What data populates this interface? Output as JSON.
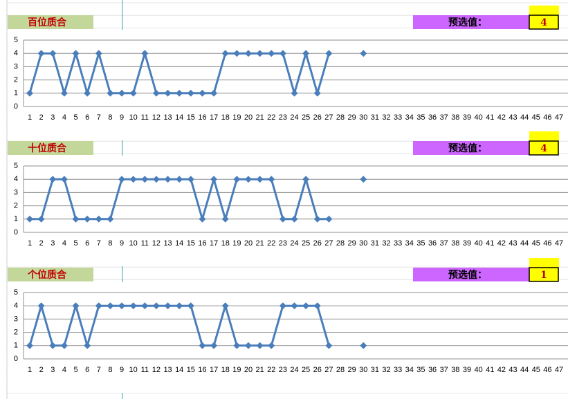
{
  "chart_data": [
    {
      "type": "line",
      "title": "百位质合",
      "preselect_label": "预选值：",
      "preselect_value": 4,
      "categories": [
        1,
        2,
        3,
        4,
        5,
        6,
        7,
        8,
        9,
        10,
        11,
        12,
        13,
        14,
        15,
        16,
        17,
        18,
        19,
        20,
        21,
        22,
        23,
        24,
        25,
        26,
        27,
        28,
        29,
        30,
        31,
        32,
        33,
        34,
        35,
        36,
        37,
        38,
        39,
        40,
        41,
        42,
        43,
        44,
        45,
        46,
        47
      ],
      "values": [
        1,
        4,
        4,
        1,
        4,
        1,
        4,
        1,
        1,
        1,
        4,
        1,
        1,
        1,
        1,
        1,
        1,
        4,
        4,
        4,
        4,
        4,
        4,
        1,
        4,
        1,
        4,
        null,
        null,
        4,
        null,
        null,
        null,
        null,
        null,
        null,
        null,
        null,
        null,
        null,
        null,
        null,
        null,
        null,
        null,
        null,
        null
      ],
      "color": "#4a7ebb",
      "ylim": [
        0,
        5
      ],
      "yticks": [
        0,
        1,
        2,
        3,
        4,
        5
      ],
      "grid": true
    },
    {
      "type": "line",
      "title": "十位质合",
      "preselect_label": "预选值：",
      "preselect_value": 4,
      "categories": [
        1,
        2,
        3,
        4,
        5,
        6,
        7,
        8,
        9,
        10,
        11,
        12,
        13,
        14,
        15,
        16,
        17,
        18,
        19,
        20,
        21,
        22,
        23,
        24,
        25,
        26,
        27,
        28,
        29,
        30,
        31,
        32,
        33,
        34,
        35,
        36,
        37,
        38,
        39,
        40,
        41,
        42,
        43,
        44,
        45,
        46,
        47
      ],
      "values": [
        1,
        1,
        4,
        4,
        1,
        1,
        1,
        1,
        4,
        4,
        4,
        4,
        4,
        4,
        4,
        1,
        4,
        1,
        4,
        4,
        4,
        4,
        1,
        1,
        4,
        1,
        1,
        null,
        null,
        4,
        null,
        null,
        null,
        null,
        null,
        null,
        null,
        null,
        null,
        null,
        null,
        null,
        null,
        null,
        null,
        null,
        null
      ],
      "color": "#4a7ebb",
      "ylim": [
        0,
        5
      ],
      "yticks": [
        0,
        1,
        2,
        3,
        4,
        5
      ],
      "grid": true
    },
    {
      "type": "line",
      "title": "个位质合",
      "preselect_label": "预选值：",
      "preselect_value": 1,
      "categories": [
        1,
        2,
        3,
        4,
        5,
        6,
        7,
        8,
        9,
        10,
        11,
        12,
        13,
        14,
        15,
        16,
        17,
        18,
        19,
        20,
        21,
        22,
        23,
        24,
        25,
        26,
        27,
        28,
        29,
        30,
        31,
        32,
        33,
        34,
        35,
        36,
        37,
        38,
        39,
        40,
        41,
        42,
        43,
        44,
        45,
        46,
        47
      ],
      "values": [
        1,
        4,
        1,
        1,
        4,
        1,
        4,
        4,
        4,
        4,
        4,
        4,
        4,
        4,
        4,
        1,
        1,
        4,
        1,
        1,
        1,
        1,
        4,
        4,
        4,
        4,
        1,
        null,
        null,
        1,
        null,
        null,
        null,
        null,
        null,
        null,
        null,
        null,
        null,
        null,
        null,
        null,
        null,
        null,
        null,
        null,
        null
      ],
      "color": "#4a7ebb",
      "ylim": [
        0,
        5
      ],
      "yticks": [
        0,
        1,
        2,
        3,
        4,
        5
      ],
      "grid": true
    }
  ]
}
